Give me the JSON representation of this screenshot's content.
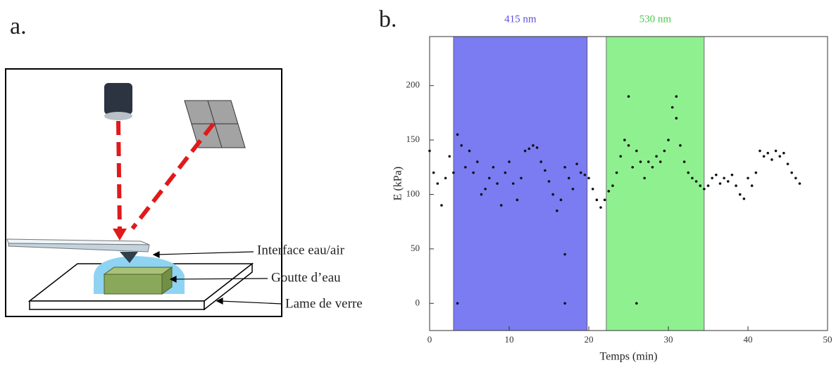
{
  "panel_a": {
    "label": "a.",
    "annotations": [
      "Interface eau/air",
      "Goutte d’eau",
      "Lame de verre"
    ]
  },
  "panel_b": {
    "label": "b."
  },
  "chart_data": {
    "type": "scatter",
    "x_label": "Temps (min)",
    "y_label": "E (kPa)",
    "xlim": [
      0,
      50
    ],
    "ylim": [
      -25,
      245
    ],
    "xticks": [
      0,
      10,
      20,
      30,
      40,
      50
    ],
    "yticks": [
      0,
      50,
      100,
      150,
      200
    ],
    "color": "#111111",
    "bands": [
      {
        "label": "415 nm",
        "start": 3,
        "end": 19.8,
        "color": "#7b7bf2",
        "label_color": "#5b4fd8"
      },
      {
        "label": "530 nm",
        "start": 22.2,
        "end": 34.5,
        "color": "#8ff08f",
        "label_color": "#4cc94c"
      }
    ],
    "x": [
      0,
      0.5,
      1,
      1.5,
      2,
      2.5,
      3,
      3.5,
      4,
      4.5,
      5,
      5.5,
      6,
      6.5,
      7,
      7.5,
      8,
      8.5,
      9,
      9.5,
      10,
      10.5,
      11,
      11.5,
      12,
      12.5,
      13,
      13.5,
      14,
      14.5,
      15,
      15.5,
      16,
      16.5,
      17,
      17.5,
      18,
      18.5,
      19,
      19.5,
      20,
      20.5,
      21,
      21.5,
      22,
      22.5,
      23,
      23.5,
      24,
      24.5,
      25,
      25.5,
      26,
      26.5,
      27,
      27.5,
      28,
      28.5,
      29,
      29.5,
      30,
      30.5,
      31,
      31.5,
      32,
      32.5,
      33,
      33.5,
      34,
      34.5,
      35,
      35.5,
      36,
      36.5,
      37,
      37.5,
      38,
      38.5,
      39,
      39.5,
      40,
      40.5,
      41,
      41.5,
      42,
      42.5,
      43,
      43.5,
      44,
      44.5,
      45,
      45.5,
      46,
      46.5,
      17,
      17,
      3.5,
      26,
      25,
      31
    ],
    "values": [
      140,
      120,
      110,
      90,
      115,
      135,
      120,
      155,
      145,
      125,
      140,
      120,
      130,
      100,
      105,
      115,
      125,
      110,
      90,
      120,
      130,
      110,
      95,
      115,
      140,
      142,
      145,
      143,
      130,
      122,
      112,
      100,
      85,
      95,
      125,
      115,
      105,
      128,
      120,
      118,
      115,
      105,
      95,
      88,
      95,
      103,
      108,
      120,
      135,
      150,
      145,
      125,
      140,
      130,
      115,
      130,
      125,
      135,
      130,
      140,
      150,
      180,
      170,
      145,
      130,
      120,
      115,
      112,
      108,
      105,
      108,
      115,
      118,
      110,
      115,
      112,
      118,
      108,
      100,
      96,
      115,
      108,
      120,
      140,
      135,
      138,
      132,
      140,
      135,
      138,
      128,
      120,
      115,
      110,
      45,
      0,
      0,
      0,
      190,
      190
    ]
  }
}
